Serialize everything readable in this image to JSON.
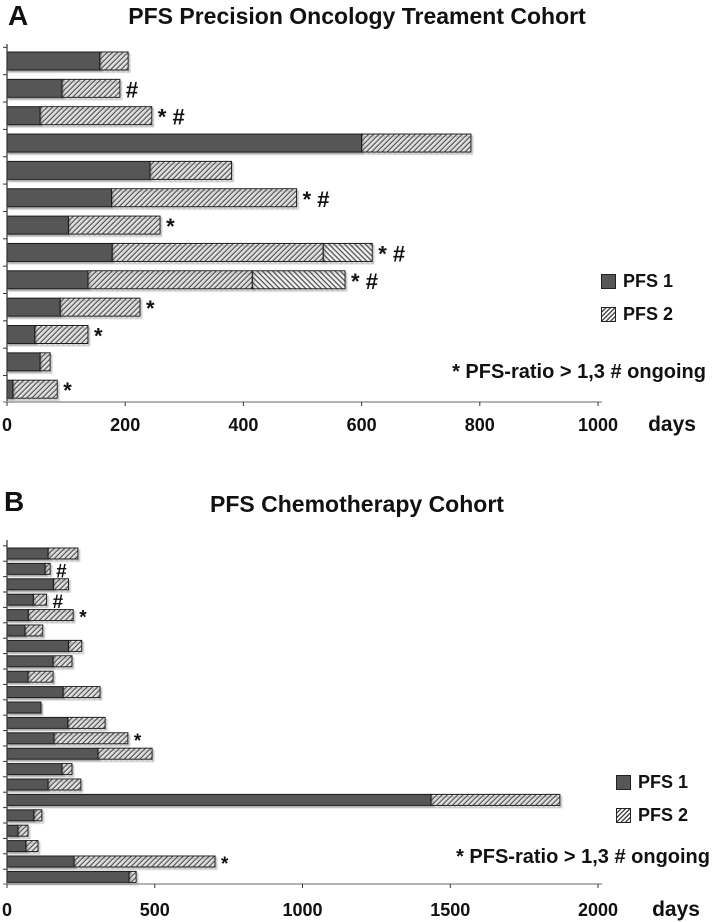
{
  "page": {
    "background": "#ffffff"
  },
  "colors": {
    "pfs1_fill": "#575757",
    "hatch_line": "#4a4a4a",
    "bar_border": "#1a1a1a",
    "x_axis_line": "#9a9a9a",
    "y_axis_line": "#333333",
    "text": "#111111"
  },
  "chart_data": [
    {
      "type": "bar",
      "orientation": "horizontal_stacked",
      "panel_label": "A",
      "title": "PFS Precision Oncology Treament Cohort",
      "xlabel": "days",
      "xlim": [
        0,
        1000
      ],
      "xticks": [
        0,
        200,
        400,
        600,
        800,
        1000
      ],
      "grid": false,
      "legend_position": "right",
      "legend": [
        {
          "label": "PFS 1",
          "swatch": "solid"
        },
        {
          "label": "PFS 2",
          "swatch": "hatch"
        }
      ],
      "note": "* PFS-ratio > 1,3 # ongoing",
      "annotation_meaning": {
        "*": "PFS-ratio > 1,3",
        "#": "ongoing"
      },
      "patients": [
        {
          "pfs1": 157,
          "pfs2": 48,
          "annotation": ""
        },
        {
          "pfs1": 93,
          "pfs2": 98,
          "annotation": "#"
        },
        {
          "pfs1": 56,
          "pfs2": 189,
          "annotation": "* #"
        },
        {
          "pfs1": 600,
          "pfs2": 185,
          "annotation": ""
        },
        {
          "pfs1": 242,
          "pfs2": 138,
          "annotation": ""
        },
        {
          "pfs1": 177,
          "pfs2": 313,
          "annotation": "* #"
        },
        {
          "pfs1": 104,
          "pfs2": 155,
          "annotation": "*"
        },
        {
          "pfs1": 178,
          "pfs2": 357,
          "pfs2_ongoing": 83,
          "annotation": "* #"
        },
        {
          "pfs1": 137,
          "pfs2": 278,
          "pfs2_ongoing": 157,
          "annotation": "* #"
        },
        {
          "pfs1": 90,
          "pfs2": 135,
          "annotation": "*"
        },
        {
          "pfs1": 47,
          "pfs2": 90,
          "annotation": "*"
        },
        {
          "pfs1": 56,
          "pfs2": 17,
          "annotation": ""
        },
        {
          "pfs1": 10,
          "pfs2": 75,
          "annotation": "*"
        }
      ]
    },
    {
      "type": "bar",
      "orientation": "horizontal_stacked",
      "panel_label": "B",
      "title": "PFS Chemotherapy Cohort",
      "xlabel": "days",
      "xlim": [
        0,
        2000
      ],
      "xticks": [
        0,
        500,
        1000,
        1500,
        2000
      ],
      "grid": false,
      "legend_position": "right",
      "legend": [
        {
          "label": "PFS 1",
          "swatch": "solid"
        },
        {
          "label": "PFS 2",
          "swatch": "hatch"
        }
      ],
      "note": "* PFS-ratio > 1,3 # ongoing",
      "annotation_meaning": {
        "*": "PFS-ratio > 1,3",
        "#": "ongoing"
      },
      "patients": [
        {
          "pfs1": 139,
          "pfs2": 101,
          "annotation": ""
        },
        {
          "pfs1": 129,
          "pfs2": 17,
          "annotation": "#"
        },
        {
          "pfs1": 157,
          "pfs2": 51,
          "annotation": ""
        },
        {
          "pfs1": 89,
          "pfs2": 45,
          "annotation": "#"
        },
        {
          "pfs1": 72,
          "pfs2": 152,
          "annotation": "*"
        },
        {
          "pfs1": 61,
          "pfs2": 60,
          "annotation": ""
        },
        {
          "pfs1": 208,
          "pfs2": 45,
          "annotation": ""
        },
        {
          "pfs1": 156,
          "pfs2": 64,
          "annotation": ""
        },
        {
          "pfs1": 71,
          "pfs2": 85,
          "annotation": ""
        },
        {
          "pfs1": 190,
          "pfs2": 125,
          "annotation": ""
        },
        {
          "pfs1": 115,
          "pfs2": 0,
          "annotation": ""
        },
        {
          "pfs1": 206,
          "pfs2": 126,
          "annotation": ""
        },
        {
          "pfs1": 159,
          "pfs2": 250,
          "annotation": "*"
        },
        {
          "pfs1": 308,
          "pfs2": 183,
          "annotation": ""
        },
        {
          "pfs1": 186,
          "pfs2": 34,
          "annotation": ""
        },
        {
          "pfs1": 139,
          "pfs2": 111,
          "annotation": ""
        },
        {
          "pfs1": 1435,
          "pfs2": 436,
          "annotation": ""
        },
        {
          "pfs1": 91,
          "pfs2": 27,
          "annotation": ""
        },
        {
          "pfs1": 37,
          "pfs2": 34,
          "annotation": ""
        },
        {
          "pfs1": 64,
          "pfs2": 41,
          "annotation": ""
        },
        {
          "pfs1": 227,
          "pfs2": 477,
          "annotation": "*"
        },
        {
          "pfs1": 413,
          "pfs2": 24,
          "annotation": ""
        }
      ]
    }
  ]
}
